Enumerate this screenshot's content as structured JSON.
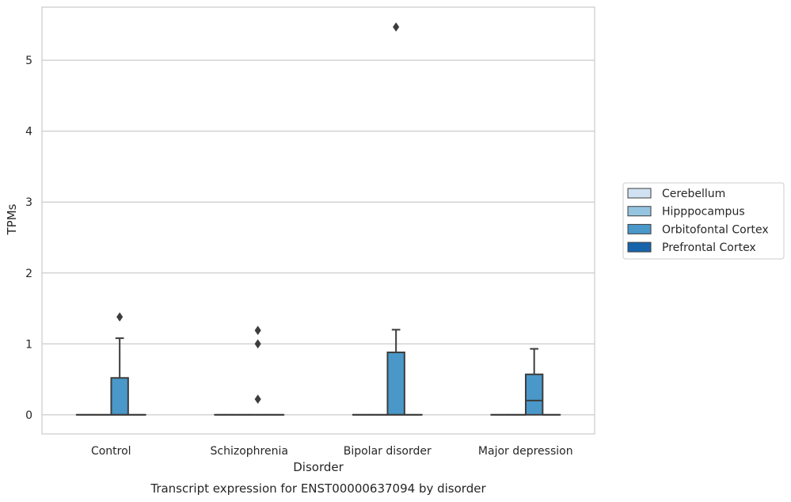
{
  "chart_data": {
    "type": "boxplot",
    "title": "Transcript expression for ENST00000637094 by disorder",
    "xlabel": "Disorder",
    "ylabel": "TPMs",
    "ylim": [
      -0.27,
      5.75
    ],
    "yticks": [
      0,
      1,
      2,
      3,
      4,
      5
    ],
    "grid": true,
    "legend_position": "right",
    "categories": [
      "Control",
      "Schizophrenia",
      "Bipolar disorder",
      "Major depression"
    ],
    "series": [
      {
        "name": "Cerebellum",
        "color": "#d0e1f2",
        "boxes": [
          {
            "q1": 0,
            "median": 0,
            "q3": 0,
            "whislo": 0,
            "whishi": 0,
            "fliers": []
          },
          {
            "q1": 0,
            "median": 0,
            "q3": 0,
            "whislo": 0,
            "whishi": 0,
            "fliers": []
          },
          {
            "q1": 0,
            "median": 0,
            "q3": 0,
            "whislo": 0,
            "whishi": 0,
            "fliers": []
          },
          {
            "q1": 0,
            "median": 0,
            "q3": 0,
            "whislo": 0,
            "whishi": 0,
            "fliers": []
          }
        ]
      },
      {
        "name": "Hipppocampus",
        "color": "#94c4df",
        "boxes": [
          {
            "q1": 0,
            "median": 0,
            "q3": 0,
            "whislo": 0,
            "whishi": 0,
            "fliers": []
          },
          {
            "q1": 0,
            "median": 0,
            "q3": 0,
            "whislo": 0,
            "whishi": 0,
            "fliers": []
          },
          {
            "q1": 0,
            "median": 0,
            "q3": 0,
            "whislo": 0,
            "whishi": 0,
            "fliers": []
          },
          {
            "q1": 0,
            "median": 0,
            "q3": 0,
            "whislo": 0,
            "whishi": 0,
            "fliers": []
          }
        ]
      },
      {
        "name": "Orbitofontal Cortex",
        "color": "#4a98c9",
        "boxes": [
          {
            "q1": 0,
            "median": 0,
            "q3": 0.52,
            "whislo": 0,
            "whishi": 1.08,
            "fliers": [
              1.38
            ]
          },
          {
            "q1": 0,
            "median": 0,
            "q3": 0,
            "whislo": 0,
            "whishi": 0,
            "fliers": [
              0.22,
              1.0,
              1.19
            ]
          },
          {
            "q1": 0,
            "median": 0,
            "q3": 0.88,
            "whislo": 0,
            "whishi": 1.2,
            "fliers": [
              5.47
            ]
          },
          {
            "q1": 0,
            "median": 0.2,
            "q3": 0.57,
            "whislo": 0,
            "whishi": 0.93,
            "fliers": []
          }
        ]
      },
      {
        "name": "Prefrontal Cortex",
        "color": "#1764ab",
        "boxes": [
          {
            "q1": 0,
            "median": 0,
            "q3": 0,
            "whislo": 0,
            "whishi": 0,
            "fliers": []
          },
          {
            "q1": 0,
            "median": 0,
            "q3": 0,
            "whislo": 0,
            "whishi": 0,
            "fliers": []
          },
          {
            "q1": 0,
            "median": 0,
            "q3": 0,
            "whislo": 0,
            "whishi": 0,
            "fliers": []
          },
          {
            "q1": 0,
            "median": 0,
            "q3": 0,
            "whislo": 0,
            "whishi": 0,
            "fliers": []
          }
        ]
      }
    ]
  }
}
